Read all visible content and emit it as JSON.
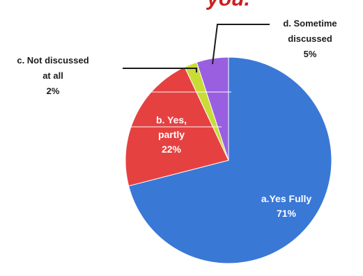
{
  "title_fragment": "you.",
  "colors": {
    "title": "#cc1f1f",
    "slice_a": "#3a78d6",
    "slice_b": "#e64141",
    "slice_c": "#c8dc35",
    "slice_d": "#9a5fe0",
    "leader": "#1a1a1a",
    "label_dark": "#1c1c1c",
    "label_light": "#ffffff"
  },
  "chart_data": {
    "type": "pie",
    "title": "you.",
    "slices": [
      {
        "name": "a.Yes Fully",
        "value": 71,
        "label_lines": [
          "a.Yes Fully",
          "71%"
        ],
        "color": "#3a78d6"
      },
      {
        "name": "b. Yes, partly",
        "value": 22,
        "label_lines": [
          "b. Yes,",
          "partly",
          "22%"
        ],
        "color": "#e64141"
      },
      {
        "name": "c. Not discussed at all",
        "value": 2,
        "label_lines": [
          "c. Not discussed",
          "at all",
          "2%"
        ],
        "color": "#c8dc35"
      },
      {
        "name": "d. Sometime discussed",
        "value": 5,
        "label_lines": [
          "d. Sometime",
          "discussed",
          "5%"
        ],
        "color": "#9a5fe0"
      }
    ],
    "legend": "none",
    "start": "top-clockwise"
  }
}
